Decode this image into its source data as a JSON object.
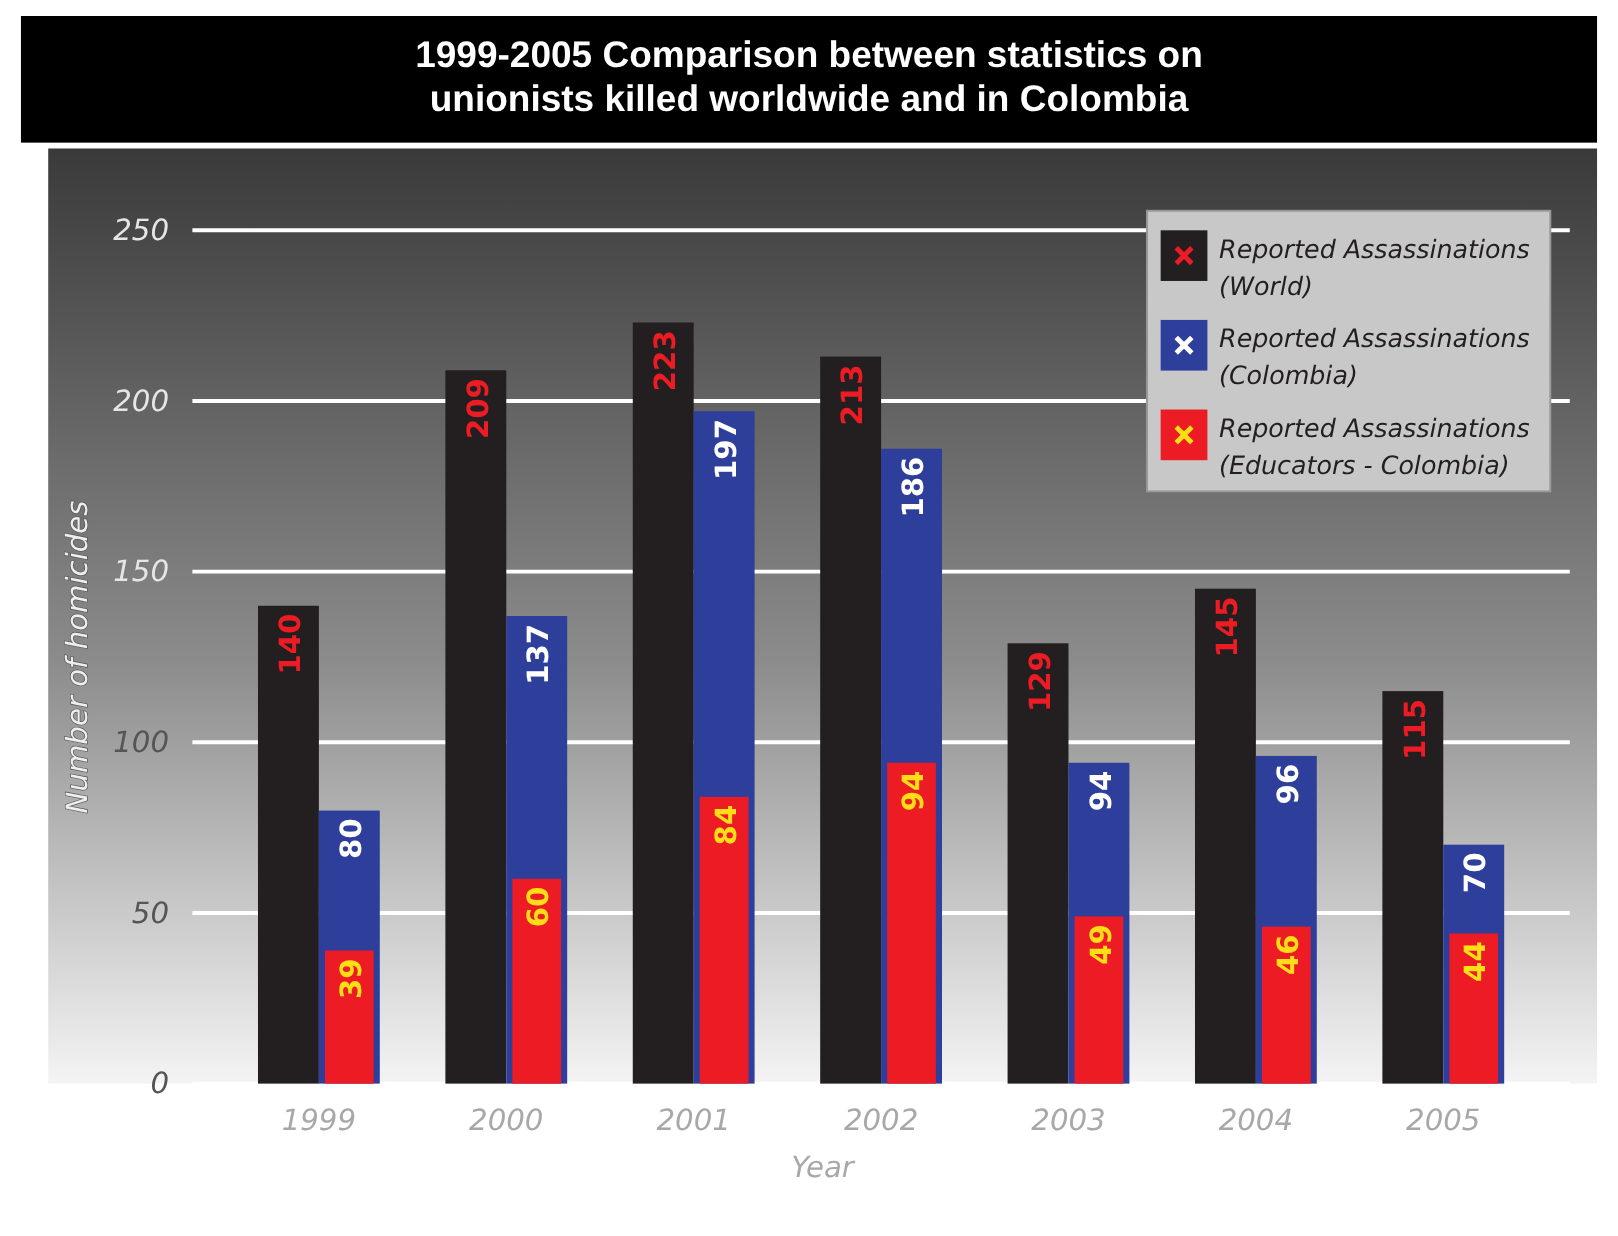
{
  "chart_data": {
    "type": "bar",
    "title": "1999-2005 Comparison between statistics on\nunionists killed worldwide and in Colombia",
    "xlabel": "Year",
    "ylabel": "Number of homicides",
    "categories": [
      "1999",
      "2000",
      "2001",
      "2002",
      "2003",
      "2004",
      "2005"
    ],
    "series": [
      {
        "name": "Reported Assassinations\n(World)",
        "color": "#231f20",
        "values": [
          140,
          209,
          223,
          213,
          129,
          145,
          115
        ]
      },
      {
        "name": "Reported Assassinations\n(Colombia)",
        "color": "#2e3f9b",
        "values": [
          80,
          137,
          197,
          186,
          94,
          96,
          70
        ]
      },
      {
        "name": "Reported Assassinations\n(Educators - Colombia)",
        "color": "#ed1c24",
        "values": [
          39,
          60,
          84,
          94,
          49,
          46,
          44
        ]
      }
    ],
    "data_labels": true,
    "ylim": [
      0,
      250
    ],
    "yticks": [
      0,
      50,
      100,
      150,
      200,
      250
    ],
    "grid": "y",
    "legend": "top right"
  }
}
